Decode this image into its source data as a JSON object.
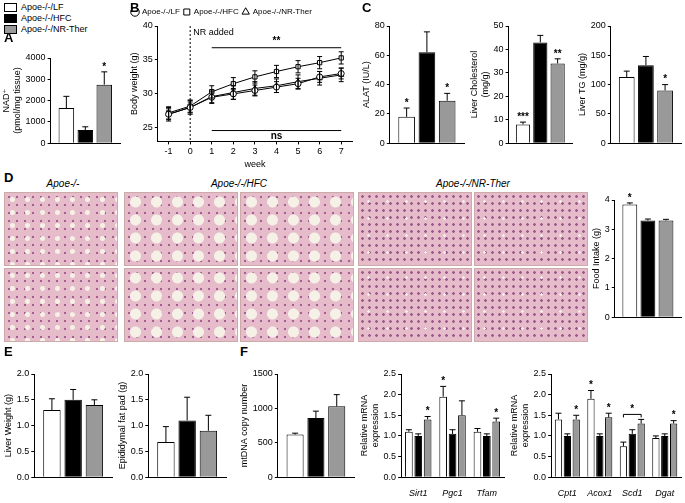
{
  "figure_legend": [
    {
      "name": "Apoe-/-/LF",
      "color": "#ffffff"
    },
    {
      "name": "Apoe-/-/HFC",
      "color": "#000000"
    },
    {
      "name": "Apoe-/-/NR-Ther",
      "color": "#999999"
    }
  ],
  "micrographs": {
    "panel": "D",
    "groups": [
      "Apoe-/-",
      "Apoe-/-/HFC",
      "Apoe-/-/NR-Ther"
    ]
  },
  "chart_data": [
    {
      "panel": "A",
      "type": "bar",
      "y_label": [
        "NAD⁺",
        "(pmol/mg tissue)"
      ],
      "categories": [
        null
      ],
      "series": [
        {
          "color": "#ffffff",
          "values": [
            1650
          ],
          "errors": [
            550
          ],
          "significance": [
            null
          ]
        },
        {
          "color": "#000000",
          "values": [
            620
          ],
          "errors": [
            150
          ],
          "significance": [
            null
          ]
        },
        {
          "color": "#999999",
          "values": [
            2750
          ],
          "errors": [
            600
          ],
          "significance": [
            "*"
          ]
        }
      ],
      "ylim": [
        0,
        4000
      ],
      "yticks": [
        0,
        1000,
        2000,
        3000,
        4000
      ]
    },
    {
      "panel": "B",
      "type": "line",
      "y_label": "Body weight (g)",
      "x_label": "week",
      "x": [
        -1,
        0,
        1,
        2,
        3,
        4,
        5,
        6,
        7
      ],
      "series": [
        {
          "name": "Apoe-/-/LF",
          "color": "#000000",
          "marker": "circle",
          "values": [
            27,
            28,
            29.5,
            30,
            30.5,
            31,
            31.5,
            32.5,
            33
          ],
          "errors": [
            0.8,
            0.8,
            0.8,
            0.8,
            0.8,
            0.8,
            0.8,
            0.8,
            0.8
          ]
        },
        {
          "name": "Apoe-/-/HFC",
          "color": "#000000",
          "marker": "rect",
          "values": [
            27.2,
            28.2,
            30.3,
            31.5,
            32.5,
            33.3,
            34,
            34.6,
            35.3
          ],
          "errors": [
            0.9,
            0.9,
            0.9,
            0.9,
            0.9,
            0.9,
            0.9,
            0.9,
            0.9
          ]
        },
        {
          "name": "Apoe-/-/NR-Ther",
          "color": "#000000",
          "marker": "triangle",
          "values": [
            27,
            28,
            29.6,
            30.2,
            30.8,
            31.2,
            31.8,
            32.3,
            32.8
          ],
          "errors": [
            1,
            1,
            1,
            1,
            1,
            1,
            1,
            1,
            1
          ]
        }
      ],
      "xlim": [
        -1.5,
        7.5
      ],
      "xticks": [
        -1,
        0,
        1,
        2,
        3,
        4,
        5,
        6,
        7
      ],
      "ylim": [
        23,
        40
      ],
      "yticks": [
        25,
        30,
        35,
        40
      ],
      "legend": "top-left",
      "vline": {
        "x": 0,
        "label": "NR added"
      },
      "brackets": [
        {
          "from": 1,
          "to": 7,
          "y": 36.8,
          "label": "**"
        },
        {
          "from": 1,
          "to": 7,
          "y": 24.6,
          "label": "ns"
        }
      ]
    },
    {
      "panel": "C",
      "type": "bar",
      "y_label": "ALAT (IU/L)",
      "categories": [
        null
      ],
      "series": [
        {
          "color": "#ffffff",
          "values": [
            18
          ],
          "errors": [
            6
          ],
          "significance": [
            "*"
          ]
        },
        {
          "color": "#000000",
          "values": [
            62
          ],
          "errors": [
            14
          ],
          "significance": [
            null
          ]
        },
        {
          "color": "#999999",
          "values": [
            29
          ],
          "errors": [
            5
          ],
          "significance": [
            "*"
          ]
        }
      ],
      "ylim": [
        0,
        80
      ],
      "yticks": [
        0,
        20,
        40,
        60,
        80
      ]
    },
    {
      "type": "bar",
      "y_label": [
        "Liver Cholesterol",
        "(mg/g)"
      ],
      "categories": [
        null
      ],
      "series": [
        {
          "color": "#ffffff",
          "values": [
            8
          ],
          "errors": [
            1
          ],
          "significance": [
            "***"
          ]
        },
        {
          "color": "#000000",
          "values": [
            43
          ],
          "errors": [
            3
          ],
          "significance": [
            null
          ]
        },
        {
          "color": "#999999",
          "values": [
            34
          ],
          "errors": [
            2
          ],
          "significance": [
            "**"
          ]
        }
      ],
      "ylim": [
        0,
        50
      ],
      "yticks": [
        0,
        10,
        20,
        30,
        40,
        50
      ]
    },
    {
      "type": "bar",
      "y_label": "Liver TG (mg/g)",
      "categories": [
        null
      ],
      "series": [
        {
          "color": "#ffffff",
          "values": [
            113
          ],
          "errors": [
            10
          ],
          "significance": [
            null
          ]
        },
        {
          "color": "#000000",
          "values": [
            133
          ],
          "errors": [
            15
          ],
          "significance": [
            null
          ]
        },
        {
          "color": "#999999",
          "values": [
            90
          ],
          "errors": [
            10
          ],
          "significance": [
            "*"
          ]
        }
      ],
      "ylim": [
        0,
        200
      ],
      "yticks": [
        0,
        50,
        100,
        150,
        200
      ]
    },
    {
      "type": "bar",
      "y_label": "Food Intake (g)",
      "categories": [
        null
      ],
      "series": [
        {
          "color": "#ffffff",
          "values": [
            3.85
          ],
          "errors": [
            0.05
          ],
          "significance": [
            "*"
          ]
        },
        {
          "color": "#000000",
          "values": [
            3.3
          ],
          "errors": [
            0.05
          ],
          "significance": [
            null
          ]
        },
        {
          "color": "#999999",
          "values": [
            3.3
          ],
          "errors": [
            0.04
          ],
          "significance": [
            null
          ]
        }
      ],
      "ylim": [
        0,
        4
      ],
      "yticks": [
        0,
        1,
        2,
        3,
        4
      ]
    },
    {
      "panel": "E",
      "type": "bar",
      "y_label": "Liver Weight (g)",
      "categories": [
        null
      ],
      "series": [
        {
          "color": "#ffffff",
          "values": [
            1.3
          ],
          "errors": [
            0.22
          ]
        },
        {
          "color": "#000000",
          "values": [
            1.5
          ],
          "errors": [
            0.2
          ]
        },
        {
          "color": "#999999",
          "values": [
            1.4
          ],
          "errors": [
            0.1
          ]
        }
      ],
      "ylim": [
        0,
        2
      ],
      "yticks": [
        {
          "value": 0,
          "label": "0.0"
        },
        0.5,
        {
          "value": 1,
          "label": "1.0"
        },
        1.5,
        {
          "value": 2,
          "label": "2.0"
        }
      ]
    },
    {
      "type": "bar",
      "y_label": "Epididymal fat pad (g)",
      "categories": [
        null
      ],
      "series": [
        {
          "color": "#ffffff",
          "values": [
            0.68
          ],
          "errors": [
            0.3
          ]
        },
        {
          "color": "#000000",
          "values": [
            1.1
          ],
          "errors": [
            0.45
          ]
        },
        {
          "color": "#999999",
          "values": [
            0.9
          ],
          "errors": [
            0.3
          ]
        }
      ],
      "ylim": [
        0,
        2
      ],
      "yticks": [
        {
          "value": 0,
          "label": "0.0"
        },
        0.5,
        {
          "value": 1,
          "label": "1.0"
        },
        1.5,
        {
          "value": 2,
          "label": "2.0"
        }
      ]
    },
    {
      "panel": "F",
      "type": "bar",
      "y_label": "mtDNA copy number",
      "categories": [
        null
      ],
      "series": [
        {
          "color": "#ffffff",
          "values": [
            620
          ],
          "errors": [
            20
          ]
        },
        {
          "color": "#000000",
          "values": [
            860
          ],
          "errors": [
            100
          ]
        },
        {
          "color": "#999999",
          "values": [
            1030
          ],
          "errors": [
            170
          ]
        }
      ],
      "ylim": [
        0,
        1500
      ],
      "yticks": [
        0,
        500,
        1000,
        1500
      ]
    },
    {
      "type": "bar",
      "y_label": [
        "Relative mRNA",
        "expression"
      ],
      "categories": [
        "Sirt1",
        "Pgc1",
        "Tfam"
      ],
      "series": [
        {
          "color": "#ffffff",
          "values": [
            1.1,
            1.95,
            1.1
          ],
          "errors": [
            0.05,
            0.25,
            0.08
          ],
          "significance": [
            null,
            "*",
            null
          ]
        },
        {
          "color": "#000000",
          "values": [
            1.0,
            1.05,
            1.0
          ],
          "errors": [
            0.05,
            0.1,
            0.05
          ],
          "significance": [
            null,
            null,
            null
          ]
        },
        {
          "color": "#999999",
          "values": [
            1.4,
            1.5,
            1.35
          ],
          "errors": [
            0.07,
            0.35,
            0.08
          ],
          "significance": [
            "*",
            null,
            "*"
          ]
        }
      ],
      "ylim": [
        0,
        2.5
      ],
      "yticks": [
        {
          "value": 0,
          "label": "0.0"
        },
        0.5,
        {
          "value": 1,
          "label": "1.0"
        },
        1.5,
        {
          "value": 2,
          "label": "2.0"
        },
        2.5
      ]
    },
    {
      "type": "bar",
      "y_label": [
        "Relative mRNA",
        "expression"
      ],
      "categories": [
        "Cpt1",
        "Acox1",
        "Scd1",
        "Dgat"
      ],
      "series": [
        {
          "color": "#ffffff",
          "values": [
            1.4,
            1.9,
            0.75,
            0.95
          ],
          "errors": [
            0.15,
            0.2,
            0.1,
            0.05
          ],
          "significance": [
            null,
            "*",
            null,
            null
          ]
        },
        {
          "color": "#000000",
          "values": [
            1.0,
            1.0,
            1.05,
            1.0
          ],
          "errors": [
            0.05,
            0.05,
            0.1,
            0.05
          ],
          "significance": [
            null,
            null,
            null,
            null
          ]
        },
        {
          "color": "#999999",
          "values": [
            1.4,
            1.45,
            1.3,
            1.3
          ],
          "errors": [
            0.1,
            0.1,
            0.1,
            0.07
          ],
          "significance": [
            "*",
            "*",
            null,
            "*"
          ]
        }
      ],
      "brackets": [
        {
          "category": "Scd1",
          "from": 0,
          "to": 2,
          "label": "*"
        }
      ],
      "ylim": [
        0,
        2.5
      ],
      "yticks": [
        {
          "value": 0,
          "label": "0.0"
        },
        0.5,
        {
          "value": 1,
          "label": "1.0"
        },
        1.5,
        {
          "value": 2,
          "label": "2.0"
        },
        2.5
      ]
    }
  ]
}
